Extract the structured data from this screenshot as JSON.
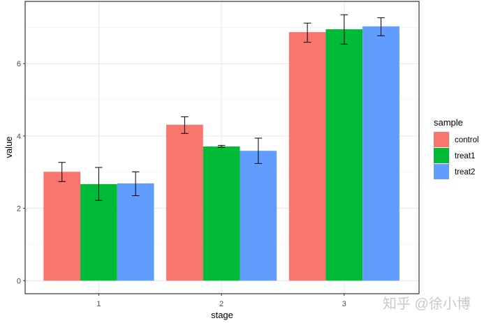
{
  "chart_data": {
    "type": "bar",
    "xlabel": "stage",
    "ylabel": "value",
    "categories": [
      "1",
      "2",
      "3"
    ],
    "ylim": [
      -0.36,
      7.72
    ],
    "yticks": [
      0,
      2,
      4,
      6
    ],
    "grid": true,
    "legend": {
      "title": "sample",
      "placement": "right"
    },
    "series": [
      {
        "name": "control",
        "color": "#F8766D",
        "values": [
          3.01,
          4.31,
          6.87
        ],
        "err_low": [
          2.74,
          4.07,
          6.59
        ],
        "err_high": [
          3.27,
          4.53,
          7.12
        ]
      },
      {
        "name": "treat1",
        "color": "#00BA38",
        "values": [
          2.67,
          3.71,
          6.95
        ],
        "err_low": [
          2.22,
          3.69,
          6.54
        ],
        "err_high": [
          3.13,
          3.74,
          7.35
        ]
      },
      {
        "name": "treat2",
        "color": "#619CFF",
        "values": [
          2.69,
          3.59,
          7.03
        ],
        "err_low": [
          2.35,
          3.24,
          6.77
        ],
        "err_high": [
          3.01,
          3.94,
          7.27
        ]
      }
    ]
  },
  "watermark": "知乎 @徐小博"
}
